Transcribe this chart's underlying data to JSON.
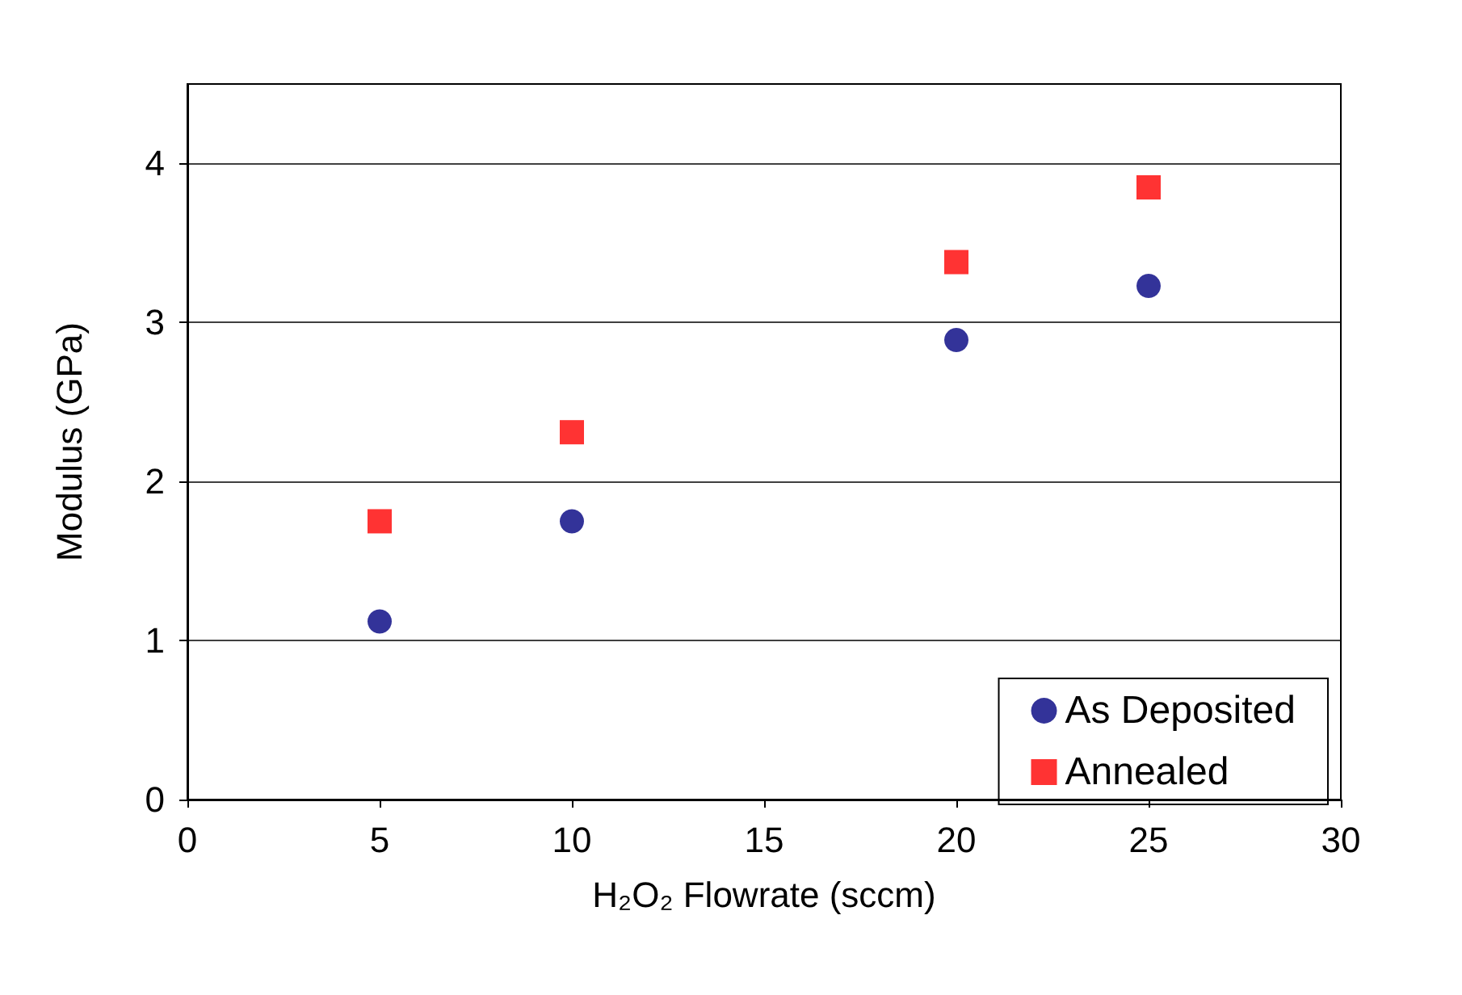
{
  "chart_data": {
    "type": "scatter",
    "xlabel": "H₂O₂ Flowrate (sccm)",
    "ylabel": "Modulus (GPa)",
    "x": [
      5,
      10,
      20,
      25
    ],
    "series": [
      {
        "name": "As Deposited",
        "color": "#000080",
        "marker": "circle",
        "values": [
          1.12,
          1.75,
          2.89,
          3.23
        ]
      },
      {
        "name": "Annealed",
        "color": "#ff0000",
        "marker": "square",
        "values": [
          1.75,
          2.31,
          3.38,
          3.85
        ]
      }
    ],
    "xlim": [
      0,
      30
    ],
    "xticks": [
      0,
      5,
      10,
      15,
      20,
      25,
      30
    ],
    "ylim": [
      0,
      4.5
    ],
    "yticks": [
      0,
      1,
      2,
      3,
      4
    ],
    "grid": "y",
    "legend": "bottom right"
  }
}
